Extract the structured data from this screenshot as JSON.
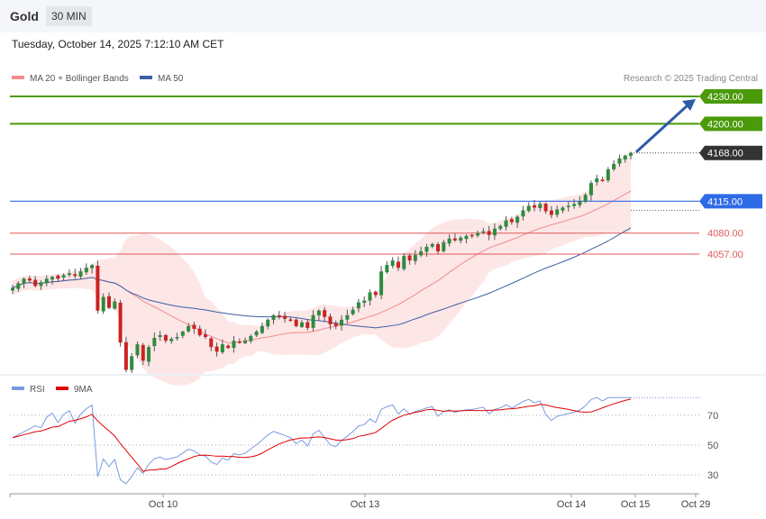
{
  "header": {
    "symbol": "Gold",
    "timeframe": "30 MIN",
    "datetime": "Tuesday, October 14, 2025 7:12:10 AM CET"
  },
  "legend": {
    "ma20": "MA 20 + Bollinger Bands",
    "ma50": "MA 50",
    "ma20_color": "#f08c8c",
    "ma50_color": "#3b5fa5"
  },
  "credit": "Research © 2025 Trading Central",
  "levels": [
    {
      "value": "4230.00",
      "kind": "resistance",
      "color": "#4a9a0a"
    },
    {
      "value": "4200.00",
      "kind": "resistance",
      "color": "#4a9a0a"
    },
    {
      "value": "4168.00",
      "kind": "last",
      "color": "#333333"
    },
    {
      "value": "4115.00",
      "kind": "pivot",
      "color": "#2e6be6"
    },
    {
      "value": "4080.00",
      "kind": "support",
      "color": "#e05a5a"
    },
    {
      "value": "4057.00",
      "kind": "support",
      "color": "#e05a5a"
    }
  ],
  "rsi": {
    "label": "RSI",
    "ma_label": "9MA",
    "rsi_color": "#7a9ae0",
    "ma_color": "#e00000",
    "ticks": [
      "70",
      "50",
      "30"
    ]
  },
  "xaxis": {
    "ticks": [
      "Oct 10",
      "Oct 13",
      "Oct 14",
      "Oct 15",
      "Oct 29"
    ]
  },
  "chart_data": {
    "type": "candlestick",
    "y_range_visible": [
      3948,
      4240
    ],
    "trend_arrow": {
      "direction": "up",
      "target": 4230
    },
    "closes": [
      4020,
      4025,
      4030,
      4028,
      4022,
      4026,
      4030,
      4032,
      4030,
      4034,
      4036,
      4033,
      4038,
      4042,
      4045,
      3995,
      4010,
      3998,
      4005,
      3960,
      3930,
      3945,
      3958,
      3940,
      3955,
      3965,
      3968,
      3962,
      3964,
      3966,
      3972,
      3978,
      3975,
      3968,
      3966,
      3955,
      3950,
      3958,
      3954,
      3962,
      3960,
      3962,
      3967,
      3972,
      3978,
      3985,
      3990,
      3988,
      3986,
      3984,
      3978,
      3982,
      3976,
      3990,
      3995,
      3988,
      3980,
      3978,
      3985,
      3990,
      3996,
      4004,
      4006,
      4015,
      4012,
      4038,
      4045,
      4050,
      4042,
      4055,
      4050,
      4056,
      4060,
      4065,
      4068,
      4060,
      4070,
      4074,
      4072,
      4075,
      4077,
      4078,
      4080,
      4082,
      4078,
      4085,
      4088,
      4094,
      4092,
      4098,
      4105,
      4110,
      4108,
      4112,
      4104,
      4100,
      4106,
      4108,
      4110,
      4112,
      4115,
      4122,
      4135,
      4140,
      4138,
      4150,
      4156,
      4162,
      4165,
      4168
    ]
  }
}
